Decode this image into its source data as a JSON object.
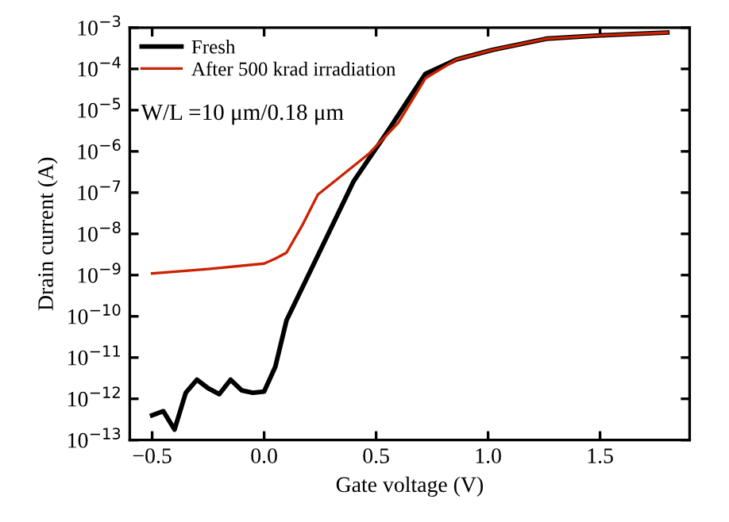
{
  "chart_data": {
    "type": "line",
    "xlabel": "Gate voltage (V)",
    "ylabel": "Drain current (A)",
    "log": "y",
    "xlim": [
      -0.6,
      1.9
    ],
    "xticks": [
      {
        "value": -0.5,
        "label": "−0.5"
      },
      {
        "value": 0.0,
        "label": "0.0"
      },
      {
        "value": 0.5,
        "label": "0.5"
      },
      {
        "value": 1.0,
        "label": "1.0"
      },
      {
        "value": 1.5,
        "label": "1.5"
      }
    ],
    "ylim": [
      1e-13,
      0.001
    ],
    "yticks": [
      {
        "value": 1e-13,
        "label": "10$^{−13}$"
      },
      {
        "value": 1e-12,
        "label": "10$^{−12}$"
      },
      {
        "value": 1e-11,
        "label": "10$^{−11}$"
      },
      {
        "value": 1e-10,
        "label": "10$^{−10}$"
      },
      {
        "value": 1e-09,
        "label": "10$^{−9}$"
      },
      {
        "value": 1e-08,
        "label": "10$^{−8}$"
      },
      {
        "value": 1e-07,
        "label": "10$^{−7}$"
      },
      {
        "value": 1e-06,
        "label": "10$^{−6}$"
      },
      {
        "value": 1e-05,
        "label": "10$^{−5}$"
      },
      {
        "value": 0.0001,
        "label": "10$^{−4}$"
      },
      {
        "value": 0.001,
        "label": "10$^{−3}$"
      }
    ],
    "legend": "top left",
    "grid": false,
    "marker": "none",
    "line_style": "solid",
    "annotations": [
      {
        "text": "W/L =10 μm/0.18 μm"
      }
    ],
    "series": [
      {
        "name": "Fresh",
        "color": "#000000",
        "x": [
          -0.5,
          -0.45,
          -0.4,
          -0.35,
          -0.3,
          -0.25,
          -0.2,
          -0.15,
          -0.1,
          -0.05,
          0.0,
          0.05,
          0.1,
          0.24,
          0.4,
          0.55,
          0.72,
          0.86,
          1.02,
          1.26,
          1.5,
          1.8
        ],
        "values": [
          4e-13,
          5e-13,
          1.8e-13,
          1.4e-12,
          2.9e-12,
          1.8e-12,
          1.3e-12,
          2.9e-12,
          1.6e-12,
          1.4e-12,
          1.5e-12,
          6e-12,
          8e-11,
          3e-09,
          1.9e-07,
          3e-06,
          7.6e-05,
          0.00017,
          0.00029,
          0.00054,
          0.00065,
          0.00076
        ]
      },
      {
        "name": "After 500 krad irradiation",
        "color": "#cc2200",
        "x": [
          -0.5,
          -0.25,
          0.0,
          0.05,
          0.1,
          0.17,
          0.24,
          0.33,
          0.47,
          0.6,
          0.72,
          0.86,
          1.02,
          1.26,
          1.5,
          1.8
        ],
        "values": [
          1.1e-09,
          1.4e-09,
          1.9e-09,
          2.5e-09,
          3.5e-09,
          1.6e-08,
          9e-08,
          2.2e-07,
          9e-07,
          5e-06,
          5.9e-05,
          0.00017,
          0.00029,
          0.00054,
          0.00065,
          0.00076
        ]
      }
    ]
  }
}
